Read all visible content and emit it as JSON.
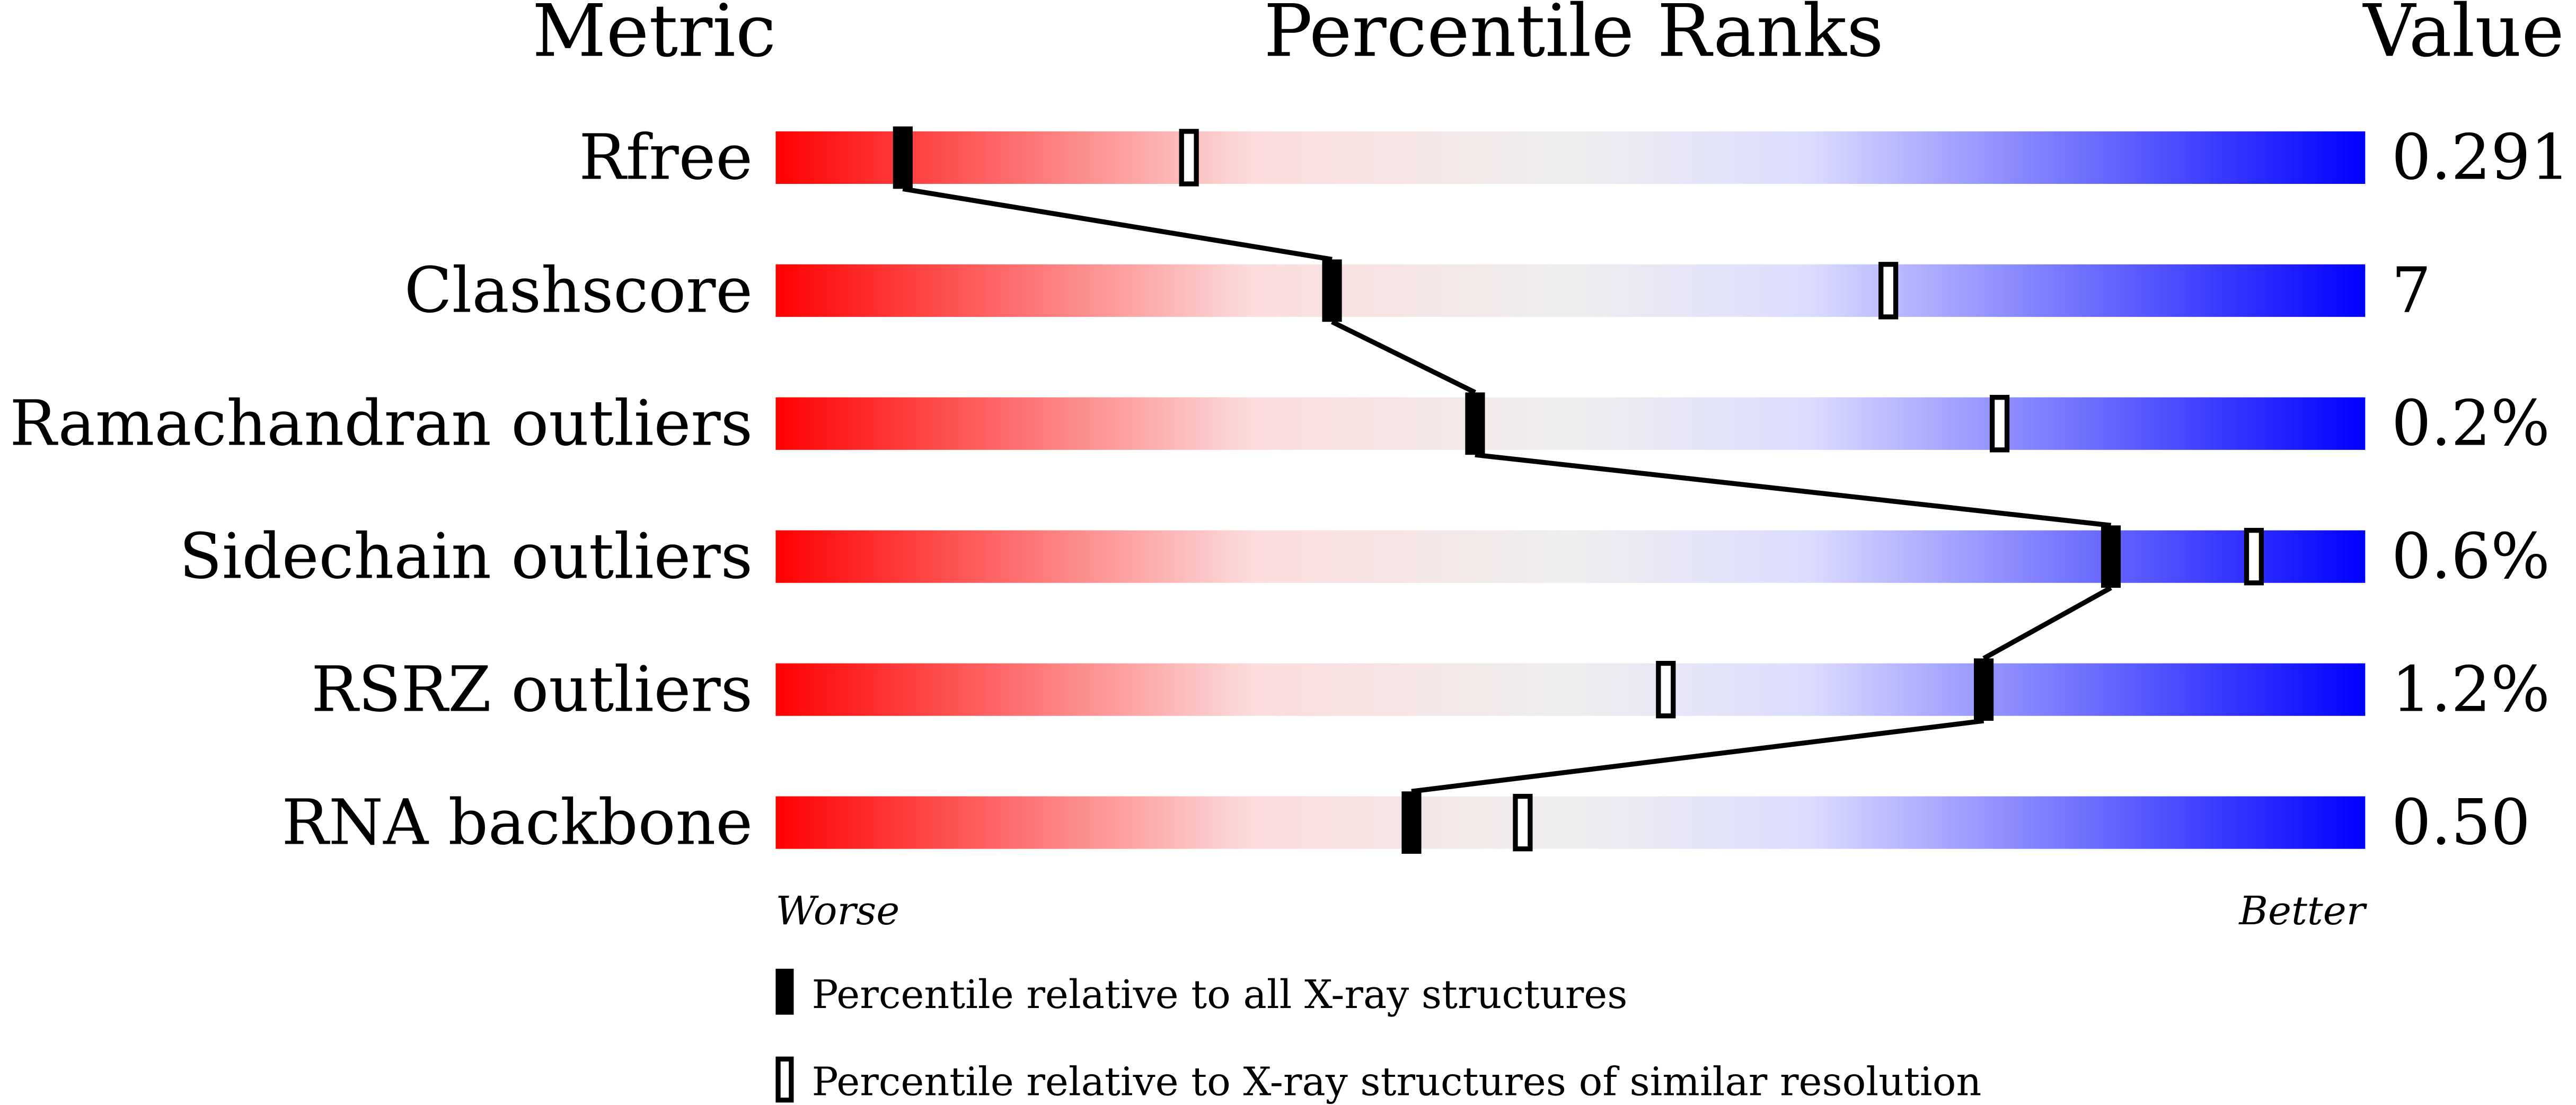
{
  "chart_data": {
    "type": "percentile-slider",
    "headers": {
      "metric": "Metric",
      "ranks": "Percentile Ranks",
      "value": "Value"
    },
    "xlim": [
      0,
      100
    ],
    "axis_labels": {
      "left": "Worse",
      "right": "Better"
    },
    "rows": [
      {
        "metric": "Rfree",
        "value": "0.291",
        "percentile_all": 8,
        "percentile_similar": 26
      },
      {
        "metric": "Clashscore",
        "value": "7",
        "percentile_all": 35,
        "percentile_similar": 70
      },
      {
        "metric": "Ramachandran outliers",
        "value": "0.2%",
        "percentile_all": 44,
        "percentile_similar": 77
      },
      {
        "metric": "Sidechain outliers",
        "value": "0.6%",
        "percentile_all": 84,
        "percentile_similar": 93
      },
      {
        "metric": "RSRZ outliers",
        "value": "1.2%",
        "percentile_all": 76,
        "percentile_similar": 56
      },
      {
        "metric": "RNA backbone",
        "value": "0.50",
        "percentile_all": 40,
        "percentile_similar": 47
      }
    ],
    "legend": [
      {
        "marker": "filled",
        "label": "Percentile relative to all X-ray structures"
      },
      {
        "marker": "open",
        "label": "Percentile relative to X-ray structures of similar resolution"
      }
    ],
    "colors": {
      "worse": "#ff0000",
      "middle": "#eeeeee",
      "better": "#0000ff"
    }
  }
}
